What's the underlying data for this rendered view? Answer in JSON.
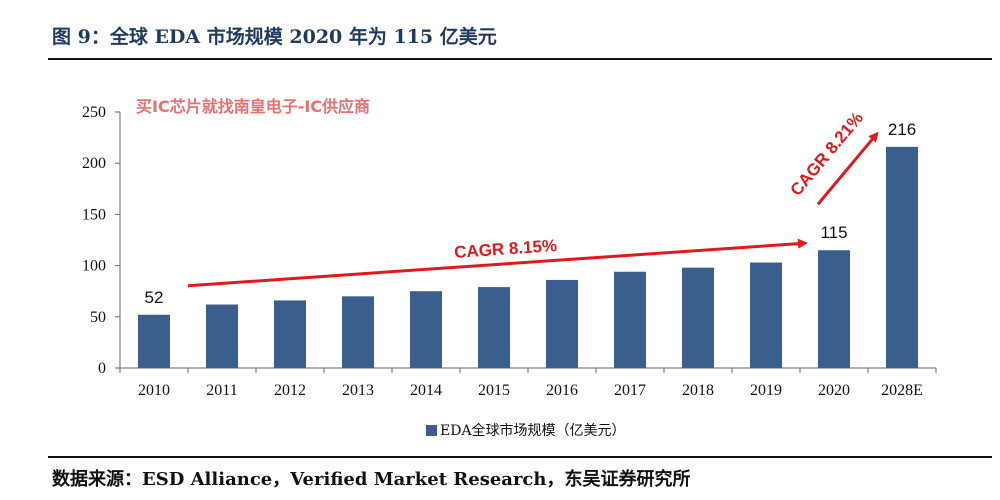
{
  "figure": {
    "title": "图 9：全球 EDA 市场规模 2020 年为 115 亿美元",
    "source": "数据来源：ESD Alliance，Verified Market Research，东吴证券研究所"
  },
  "watermark": "买IC芯片就找南皇电子-IC供应商",
  "chart_data": {
    "type": "bar",
    "categories": [
      "2010",
      "2011",
      "2012",
      "2013",
      "2014",
      "2015",
      "2016",
      "2017",
      "2018",
      "2019",
      "2020",
      "2028E"
    ],
    "series": [
      {
        "name": "EDA全球市场规模（亿美元）",
        "values": [
          52,
          62,
          66,
          70,
          75,
          79,
          86,
          94,
          98,
          103,
          115,
          216
        ],
        "color": "#3a5f8f"
      }
    ],
    "data_labels": [
      {
        "category": "2010",
        "text": "52"
      },
      {
        "category": "2020",
        "text": "115"
      },
      {
        "category": "2028E",
        "text": "216"
      }
    ],
    "annotations": [
      {
        "text": "CAGR 8.15%",
        "from": "2010",
        "to": "2020"
      },
      {
        "text": "CAGR 8.21%",
        "from": "2020",
        "to": "2028E"
      }
    ],
    "yticks": [
      0,
      50,
      100,
      150,
      200,
      250
    ],
    "ylim": [
      0,
      250
    ],
    "grid": false,
    "legend_position": "bottom",
    "annotation_color": "#e0191c"
  }
}
